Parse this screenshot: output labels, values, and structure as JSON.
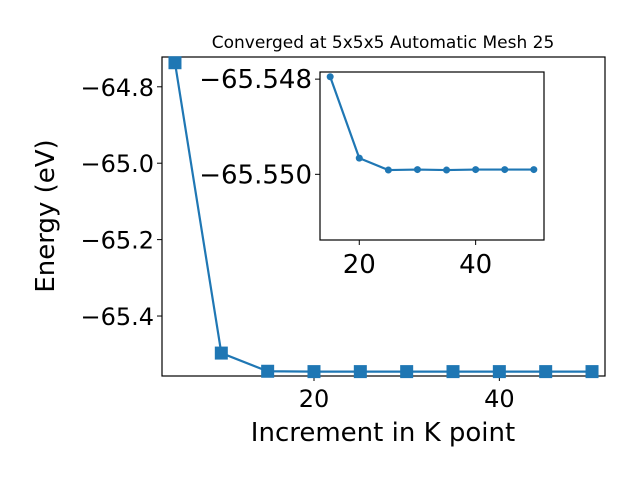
{
  "chart_data": [
    {
      "type": "line",
      "title": "Converged at 5x5x5 Automatic Mesh 25",
      "xlabel": "Increment in K point",
      "ylabel": "Energy (eV)",
      "marker": "square",
      "color": "#1f77b4",
      "xlim": [
        3.6,
        51.4
      ],
      "ylim": [
        -65.557,
        -64.722
      ],
      "xticks": [
        20,
        40
      ],
      "yticks": [
        -64.8,
        -65.0,
        -65.2,
        -65.4
      ],
      "ytick_labels": [
        "−64.8",
        "−65.0",
        "−65.2",
        "−65.4"
      ],
      "x": [
        5,
        10,
        15,
        20,
        25,
        30,
        35,
        40,
        45,
        50
      ],
      "y": [
        -64.737,
        -65.497,
        -65.5446,
        -65.5455,
        -65.5455,
        -65.5455,
        -65.5455,
        -65.5455,
        -65.5455,
        -65.5455
      ]
    },
    {
      "type": "line",
      "title": "",
      "xlabel": "",
      "ylabel": "",
      "marker": "circle",
      "color": "#1f77b4",
      "inset": true,
      "xlim": [
        13.25,
        51.75
      ],
      "ylim": [
        -65.55138,
        -65.54785
      ],
      "xticks": [
        20,
        40
      ],
      "yticks": [
        -65.55,
        -65.548
      ],
      "ytick_labels": [
        "−65.550",
        "−65.548"
      ],
      "x": [
        15,
        20,
        25,
        30,
        35,
        40,
        45,
        50
      ],
      "y": [
        -65.54795,
        -65.54966,
        -65.54991,
        -65.5499,
        -65.54991,
        -65.5499,
        -65.5499,
        -65.5499
      ]
    }
  ]
}
